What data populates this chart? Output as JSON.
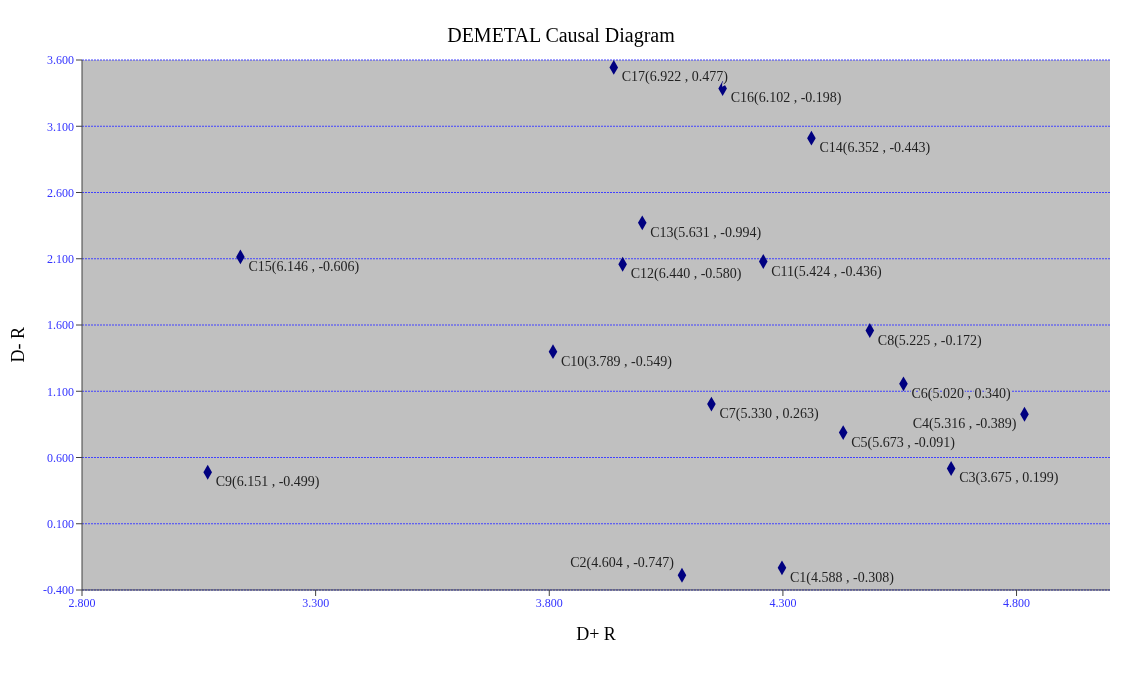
{
  "chart_data": {
    "type": "scatter",
    "title": "DEMETAL Causal Diagram",
    "xlabel": "D+ R",
    "ylabel": "D- R",
    "x": [
      3.938,
      4.171,
      4.361,
      3.999,
      3.139,
      3.957,
      4.258,
      4.486,
      3.808,
      4.558,
      4.817,
      4.147,
      4.429,
      3.069,
      4.66,
      4.298,
      4.084
    ],
    "series": [
      {
        "color": "#000080",
        "values": [
          3.544,
          3.385,
          3.01,
          2.371,
          2.114,
          2.058,
          2.079,
          1.558,
          1.399,
          1.156,
          0.926,
          1.003,
          0.788,
          0.489,
          0.517,
          -0.233,
          -0.289
        ]
      }
    ],
    "marker": "diamond",
    "grid": "y",
    "xlim": [
      2.8,
      5.0
    ],
    "xticks": [
      {
        "value": 2.8,
        "label": "2.800"
      },
      {
        "value": 3.3,
        "label": "3.300"
      },
      {
        "value": 3.8,
        "label": "3.800"
      },
      {
        "value": 4.3,
        "label": "4.300"
      },
      {
        "value": 4.8,
        "label": "4.800"
      }
    ],
    "ylim": [
      -0.4,
      3.6
    ],
    "yticks": [
      {
        "value": -0.4,
        "label": "-0.400"
      },
      {
        "value": 0.1,
        "label": "0.100"
      },
      {
        "value": 0.6,
        "label": "0.600"
      },
      {
        "value": 1.1,
        "label": "1.100"
      },
      {
        "value": 1.6,
        "label": "1.600"
      },
      {
        "value": 2.1,
        "label": "2.100"
      },
      {
        "value": 2.6,
        "label": "2.600"
      },
      {
        "value": 3.1,
        "label": "3.100"
      },
      {
        "value": 3.6,
        "label": "3.600"
      }
    ],
    "annotations": [
      {
        "text": "C17(6.922 , 0.477)",
        "x": 3.938,
        "y": 3.544
      },
      {
        "text": "C16(6.102 , -0.198)",
        "x": 4.171,
        "y": 3.385
      },
      {
        "text": "C14(6.352 , -0.443)",
        "x": 4.361,
        "y": 3.01
      },
      {
        "text": "C13(5.631 , -0.994)",
        "x": 3.999,
        "y": 2.371
      },
      {
        "text": "C15(6.146 , -0.606)",
        "x": 3.139,
        "y": 2.114
      },
      {
        "text": "C12(6.440 , -0.580)",
        "x": 3.957,
        "y": 2.058
      },
      {
        "text": "C11(5.424 , -0.436)",
        "x": 4.258,
        "y": 2.079
      },
      {
        "text": "C8(5.225 , -0.172)",
        "x": 4.486,
        "y": 1.558
      },
      {
        "text": "C10(3.789 , -0.549)",
        "x": 3.808,
        "y": 1.399
      },
      {
        "text": "C6(5.020 , 0.340)",
        "x": 4.558,
        "y": 1.156
      },
      {
        "text": "C4(5.316 , -0.389)",
        "x": 4.817,
        "y": 0.926
      },
      {
        "text": "C7(5.330 , 0.263)",
        "x": 4.147,
        "y": 1.003
      },
      {
        "text": "C5(5.673 , -0.091)",
        "x": 4.429,
        "y": 0.788
      },
      {
        "text": "C9(6.151 , -0.499)",
        "x": 3.069,
        "y": 0.489
      },
      {
        "text": "C3(3.675 , 0.199)",
        "x": 4.66,
        "y": 0.517
      },
      {
        "text": "C1(4.588 , -0.308)",
        "x": 4.298,
        "y": -0.233
      },
      {
        "text": "C2(4.604 , -0.747)",
        "x": 4.084,
        "y": -0.289
      }
    ]
  }
}
